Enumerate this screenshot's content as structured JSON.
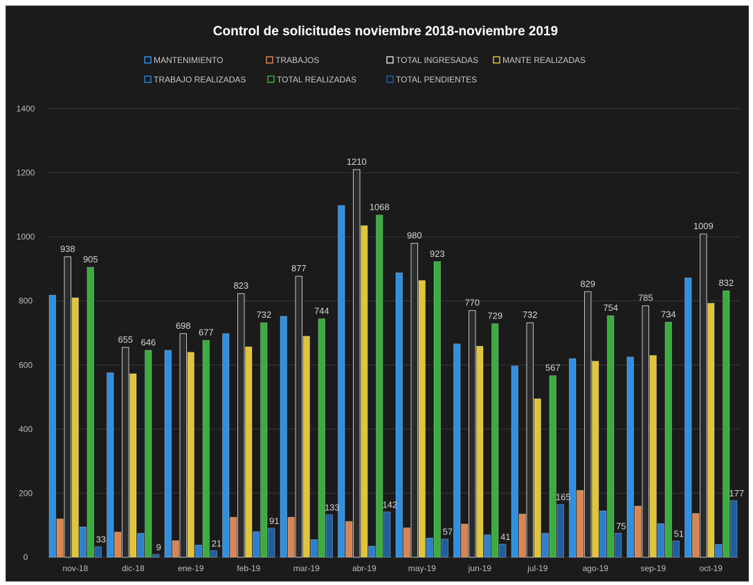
{
  "chart_data": {
    "type": "bar",
    "title": "Control de solicitudes noviembre 2018-noviembre 2019",
    "xlabel": "",
    "ylabel": "",
    "ylim": [
      0,
      1400
    ],
    "yticks": [
      0,
      200,
      400,
      600,
      800,
      1000,
      1200,
      1400
    ],
    "grid": true,
    "legend_position": "top",
    "categories": [
      "nov-18",
      "dic-18",
      "ene-19",
      "feb-19",
      "mar-19",
      "abr-19",
      "may-19",
      "jun-19",
      "jul-19",
      "ago-19",
      "sep-19",
      "oct-19"
    ],
    "series": [
      {
        "name": "MANTENIMIENTO",
        "color": "#2f8fe0",
        "values": [
          818,
          576,
          646,
          698,
          752,
          1098,
          888,
          666,
          597,
          620,
          625,
          872
        ],
        "labels": []
      },
      {
        "name": "TRABAJOS",
        "color": "#d98553",
        "values": [
          120,
          79,
          52,
          125,
          125,
          112,
          92,
          104,
          135,
          209,
          160,
          137
        ],
        "labels": []
      },
      {
        "name": "TOTAL INGRESADAS",
        "color": "#2b2b2b",
        "values": [
          938,
          655,
          698,
          823,
          877,
          1210,
          980,
          770,
          732,
          829,
          785,
          1009
        ],
        "labels": [
          "938",
          "655",
          "698",
          "823",
          "877",
          "1210",
          "980",
          "770",
          "732",
          "829",
          "785",
          "1009"
        ]
      },
      {
        "name": "MANTE REALIZADAS",
        "color": "#e0c43a",
        "values": [
          810,
          573,
          640,
          657,
          690,
          1035,
          864,
          659,
          495,
          612,
          630,
          793
        ],
        "labels": []
      },
      {
        "name": "TRABAJO REALIZADAS",
        "color": "#2d7fd0",
        "values": [
          95,
          75,
          38,
          80,
          55,
          35,
          60,
          70,
          75,
          145,
          105,
          40
        ],
        "labels": []
      },
      {
        "name": "TOTAL REALIZADAS",
        "color": "#3aad3f",
        "values": [
          905,
          646,
          677,
          732,
          744,
          1068,
          923,
          729,
          567,
          754,
          734,
          832
        ],
        "labels": [
          "905",
          "646",
          "677",
          "732",
          "744",
          "1068",
          "923",
          "729",
          "567",
          "754",
          "734",
          "832"
        ]
      },
      {
        "name": "TOTAL PENDIENTES",
        "color": "#1f5f9f",
        "values": [
          33,
          9,
          21,
          91,
          133,
          142,
          57,
          41,
          165,
          75,
          51,
          177
        ],
        "labels": [
          "33",
          "9",
          "21",
          "91",
          "133",
          "142",
          "57",
          "41",
          "165",
          "75",
          "51",
          "177"
        ]
      }
    ]
  }
}
